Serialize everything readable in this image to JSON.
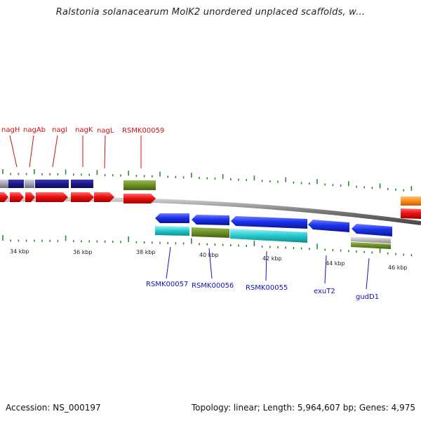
{
  "title": "Ralstonia solanacearum MolK2 unordered unplaced scaffolds, w...",
  "footer": {
    "accession": "Accession: NS_000197",
    "summary": "Topology: linear; Length: 5,964,607 bp; Genes: 4,975"
  },
  "colors": {
    "forward_gene_label": "#cc1111",
    "reverse_gene_label": "#1111bb",
    "tick": "#2a8a2a",
    "backbone": "#8a8a8a"
  },
  "scale_labels": [
    "34 kbp",
    "36 kbp",
    "38 kbp",
    "40 kbp",
    "42 kbp",
    "44 kbp",
    "46 kbp"
  ],
  "top_labels": [
    "nagH",
    "nagAb",
    "nagI",
    "nagK",
    "nagL",
    "RSMK00059"
  ],
  "bottom_labels": [
    "RSMK00057",
    "RSMK00056",
    "RSMK00055",
    "exuT2",
    "gudD1"
  ],
  "features": [
    {
      "name": "nagH-block",
      "color": "#1a1a8a"
    },
    {
      "name": "nagAb-block",
      "color": "#a0a0b0"
    },
    {
      "name": "nagI-block",
      "color": "#1a1a8a"
    },
    {
      "name": "nagK-block",
      "color": "#1a1a8a"
    },
    {
      "name": "RSMK00059-block",
      "color": "#6b8e23"
    },
    {
      "name": "forward-cds",
      "color": "#ee1111"
    },
    {
      "name": "RSMK00057-block",
      "color": "#22c8cc"
    },
    {
      "name": "RSMK00056-block",
      "color": "#6b8e23"
    },
    {
      "name": "RSMK00055-block",
      "color": "#22c8cc"
    },
    {
      "name": "reverse-cds",
      "color": "#1a33ee"
    },
    {
      "name": "gudD1-block",
      "color": "#bbbbbb"
    },
    {
      "name": "right-forward-block",
      "color": "#ff8c1a"
    }
  ]
}
